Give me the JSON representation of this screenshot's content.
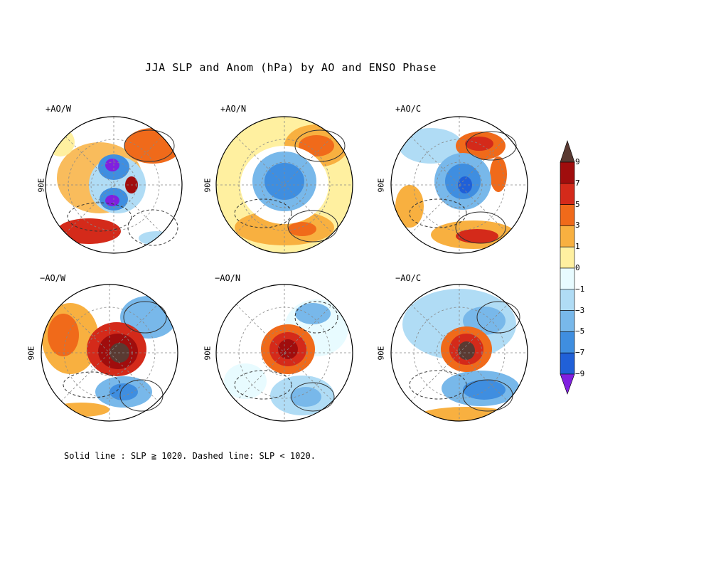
{
  "title": "JJA SLP and Anom (hPa) by AO and ENSO Phase",
  "lon_label": "90E",
  "footnote": "Solid line : SLP ≧ 1020.  Dashed line: SLP < 1020.",
  "panels": [
    {
      "label": "+AO/W",
      "polar_anomaly": "negative"
    },
    {
      "label": "+AO/N",
      "polar_anomaly": "negative"
    },
    {
      "label": "+AO/C",
      "polar_anomaly": "negative"
    },
    {
      "label": "−AO/W",
      "polar_anomaly": "positive"
    },
    {
      "label": "−AO/N",
      "polar_anomaly": "positive"
    },
    {
      "label": "−AO/C",
      "polar_anomaly": "positive"
    }
  ],
  "colorbar": {
    "ticks": [
      "9",
      "7",
      "5",
      "3",
      "1",
      "0",
      "−1",
      "−3",
      "−5",
      "−7",
      "−9"
    ],
    "colors": {
      "gt9": "#5a3a32",
      "7to9": "#a00d0d",
      "5to7": "#d42a1a",
      "3to5": "#f06a1a",
      "1to3": "#f8b040",
      "0to1": "#fff0a0",
      "m1to0": "#e8fbff",
      "m3tom1": "#b0dcf5",
      "m5tom3": "#78b8ea",
      "m7tom5": "#3f8ee0",
      "m9tom7": "#2060d8",
      "ltm9": "#8020e0"
    }
  }
}
